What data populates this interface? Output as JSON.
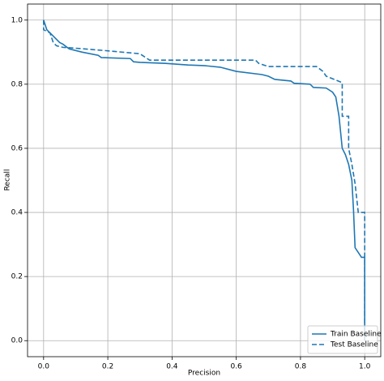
{
  "chart_data": {
    "type": "line",
    "xlabel": "Precision",
    "ylabel": "Recall",
    "xlim": [
      -0.05,
      1.05
    ],
    "ylim": [
      -0.05,
      1.05
    ],
    "xticks": [
      {
        "value": 0,
        "label": "0.0"
      },
      0.2,
      0.4,
      0.6,
      0.8,
      {
        "value": 1,
        "label": "1.0"
      }
    ],
    "yticks": [
      {
        "value": 0,
        "label": "0.0"
      },
      0.2,
      0.4,
      0.6,
      0.8,
      {
        "value": 1,
        "label": "1.0"
      }
    ],
    "grid": true,
    "legend": "lower right",
    "series": [
      {
        "name": "Train Baseline",
        "color": "#1f77b4",
        "dash": "solid",
        "x": [
          0,
          0.01,
          0.02,
          0.05,
          0.06,
          0.08,
          0.12,
          0.17,
          0.18,
          0.27,
          0.28,
          0.3,
          0.38,
          0.45,
          0.5,
          0.55,
          0.6,
          0.68,
          0.7,
          0.72,
          0.77,
          0.78,
          0.83,
          0.84,
          0.88,
          0.9,
          0.91,
          0.915,
          0.92,
          0.925,
          0.93,
          0.94,
          0.95,
          0.96,
          0.965,
          0.97,
          0.98,
          0.99,
          1.0,
          1.0
        ],
        "values": [
          1.0,
          0.97,
          0.96,
          0.93,
          0.925,
          0.91,
          0.9,
          0.89,
          0.883,
          0.88,
          0.87,
          0.868,
          0.865,
          0.86,
          0.858,
          0.853,
          0.84,
          0.83,
          0.825,
          0.815,
          0.81,
          0.803,
          0.8,
          0.79,
          0.788,
          0.775,
          0.76,
          0.73,
          0.7,
          0.65,
          0.6,
          0.58,
          0.55,
          0.5,
          0.41,
          0.29,
          0.275,
          0.26,
          0.26,
          0.0
        ]
      },
      {
        "name": "Test Baseline",
        "color": "#1f77b4",
        "dash": "dashed",
        "x": [
          0,
          0,
          0.02,
          0.03,
          0.04,
          0.06,
          0.09,
          0.19,
          0.3,
          0.33,
          0.66,
          0.67,
          0.7,
          0.85,
          0.87,
          0.88,
          0.93,
          0.93,
          0.95,
          0.95,
          0.96,
          0.97,
          0.98,
          1.0,
          1.0
        ],
        "values": [
          1.0,
          0.97,
          0.96,
          0.93,
          0.92,
          0.915,
          0.913,
          0.905,
          0.895,
          0.875,
          0.875,
          0.865,
          0.855,
          0.855,
          0.84,
          0.825,
          0.805,
          0.7,
          0.7,
          0.6,
          0.55,
          0.49,
          0.4,
          0.4,
          0.03
        ]
      }
    ]
  }
}
